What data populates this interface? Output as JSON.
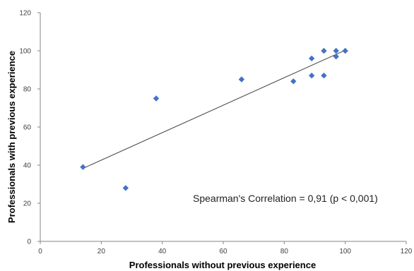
{
  "chart_data": {
    "type": "scatter",
    "title": "",
    "xlabel": "Professionals without previous experience",
    "ylabel": "Professionals with previous experience",
    "xlim": [
      0,
      120
    ],
    "ylim": [
      0,
      120
    ],
    "xticks": [
      0,
      20,
      40,
      60,
      80,
      100,
      120
    ],
    "yticks": [
      0,
      20,
      40,
      60,
      80,
      100,
      120
    ],
    "grid": false,
    "legend": "none",
    "marker": "diamond",
    "marker_color": "#4472C4",
    "trendline": {
      "type": "linear",
      "color": "#404040",
      "x_start": 14,
      "x_end": 100
    },
    "annotation": "Spearman's Correlation = 0,91 (p < 0,001)",
    "points": [
      {
        "x": 14,
        "y": 39
      },
      {
        "x": 28,
        "y": 28
      },
      {
        "x": 38,
        "y": 75
      },
      {
        "x": 66,
        "y": 85
      },
      {
        "x": 83,
        "y": 84
      },
      {
        "x": 89,
        "y": 96
      },
      {
        "x": 89,
        "y": 87
      },
      {
        "x": 93,
        "y": 100
      },
      {
        "x": 93,
        "y": 87
      },
      {
        "x": 97,
        "y": 100
      },
      {
        "x": 97,
        "y": 97
      },
      {
        "x": 100,
        "y": 100
      }
    ]
  }
}
